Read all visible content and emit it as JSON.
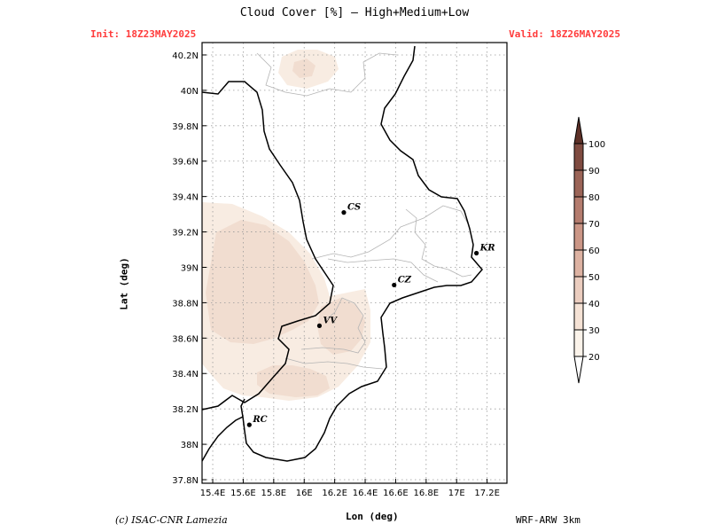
{
  "title": "Cloud Cover [%] — High+Medium+Low",
  "init_label": "Init:  18Z23MAY2025",
  "valid_label": "Valid:  18Z26MAY2025",
  "axes": {
    "xlabel": "Lon (deg)",
    "ylabel": "Lat (deg)",
    "lon_ticks": [
      "15.4E",
      "15.6E",
      "15.8E",
      "16E",
      "16.2E",
      "16.4E",
      "16.6E",
      "16.8E",
      "17E",
      "17.2E"
    ],
    "lat_ticks": [
      "40.2N",
      "40N",
      "39.8N",
      "39.6N",
      "39.4N",
      "39.2N",
      "39N",
      "38.8N",
      "38.6N",
      "38.4N",
      "38.2N",
      "38N",
      "37.8N"
    ],
    "lon_values": [
      15.4,
      15.6,
      15.8,
      16.0,
      16.2,
      16.4,
      16.6,
      16.8,
      17.0,
      17.2
    ],
    "lat_values": [
      40.2,
      40.0,
      39.8,
      39.6,
      39.4,
      39.2,
      39.0,
      38.8,
      38.6,
      38.4,
      38.2,
      38.0,
      37.8
    ],
    "lon_range": [
      15.33,
      17.33
    ],
    "lat_range": [
      37.78,
      40.27
    ]
  },
  "colorbar": {
    "levels": [
      "20",
      "30",
      "40",
      "50",
      "60",
      "70",
      "80",
      "90",
      "100"
    ],
    "colors": [
      "#fbf3ea",
      "#f5e2d5",
      "#ebcdbf",
      "#ddb2a2",
      "#cb9686",
      "#b47c6e",
      "#9b6457",
      "#7f4b40",
      "#5e3128"
    ]
  },
  "cities": [
    {
      "code": "CS",
      "lon": 16.26,
      "lat": 39.31
    },
    {
      "code": "KR",
      "lon": 17.13,
      "lat": 39.08
    },
    {
      "code": "CZ",
      "lon": 16.59,
      "lat": 38.9
    },
    {
      "code": "VV",
      "lon": 16.1,
      "lat": 38.67
    },
    {
      "code": "RC",
      "lon": 15.64,
      "lat": 38.11
    }
  ],
  "footer": {
    "credit": "(c) ISAC-CNR Lamezia",
    "model": "WRF-ARW 3km"
  }
}
